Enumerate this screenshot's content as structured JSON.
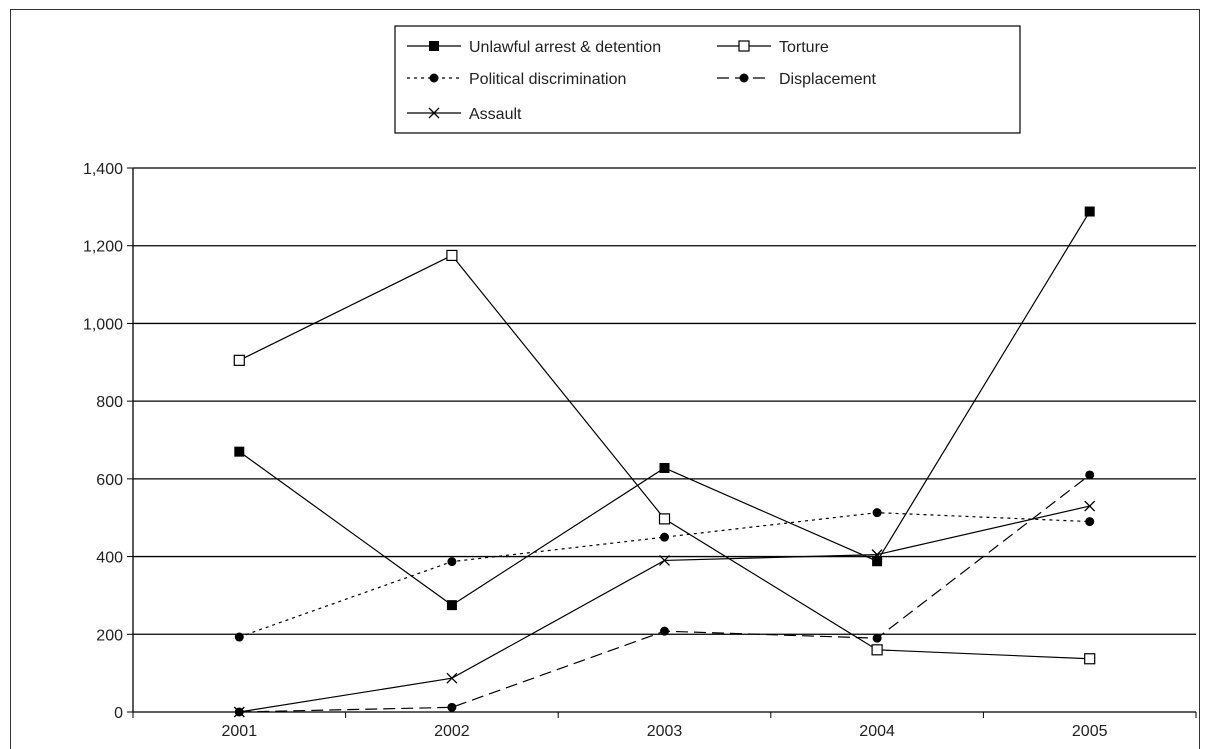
{
  "chart_data": {
    "type": "line",
    "title": "",
    "xlabel": "",
    "ylabel": "",
    "categories": [
      "2001",
      "2002",
      "2003",
      "2004",
      "2005"
    ],
    "ylim": [
      0,
      1400
    ],
    "yticks": [
      0,
      200,
      400,
      600,
      800,
      1000,
      1200,
      1400
    ],
    "ytick_labels": [
      "0",
      "200",
      "400",
      "600",
      "800",
      "1,000",
      "1,200",
      "1,400"
    ],
    "grid": "horizontal",
    "legend_position": "top-center",
    "series": [
      {
        "name": "Unlawful arrest & detention",
        "values": [
          670,
          275,
          628,
          388,
          1288
        ],
        "line": "solid",
        "marker": "filled-square"
      },
      {
        "name": "Torture",
        "values": [
          905,
          1175,
          497,
          160,
          137
        ],
        "line": "solid",
        "marker": "open-square"
      },
      {
        "name": "Political discrimination",
        "values": [
          193,
          387,
          450,
          513,
          490
        ],
        "line": "dotted",
        "marker": "filled-circle"
      },
      {
        "name": "Displacement",
        "values": [
          0,
          12,
          208,
          190,
          610
        ],
        "line": "dashed",
        "marker": "filled-circle"
      },
      {
        "name": "Assault",
        "values": [
          0,
          87,
          390,
          405,
          530
        ],
        "line": "solid",
        "marker": "x"
      }
    ]
  }
}
